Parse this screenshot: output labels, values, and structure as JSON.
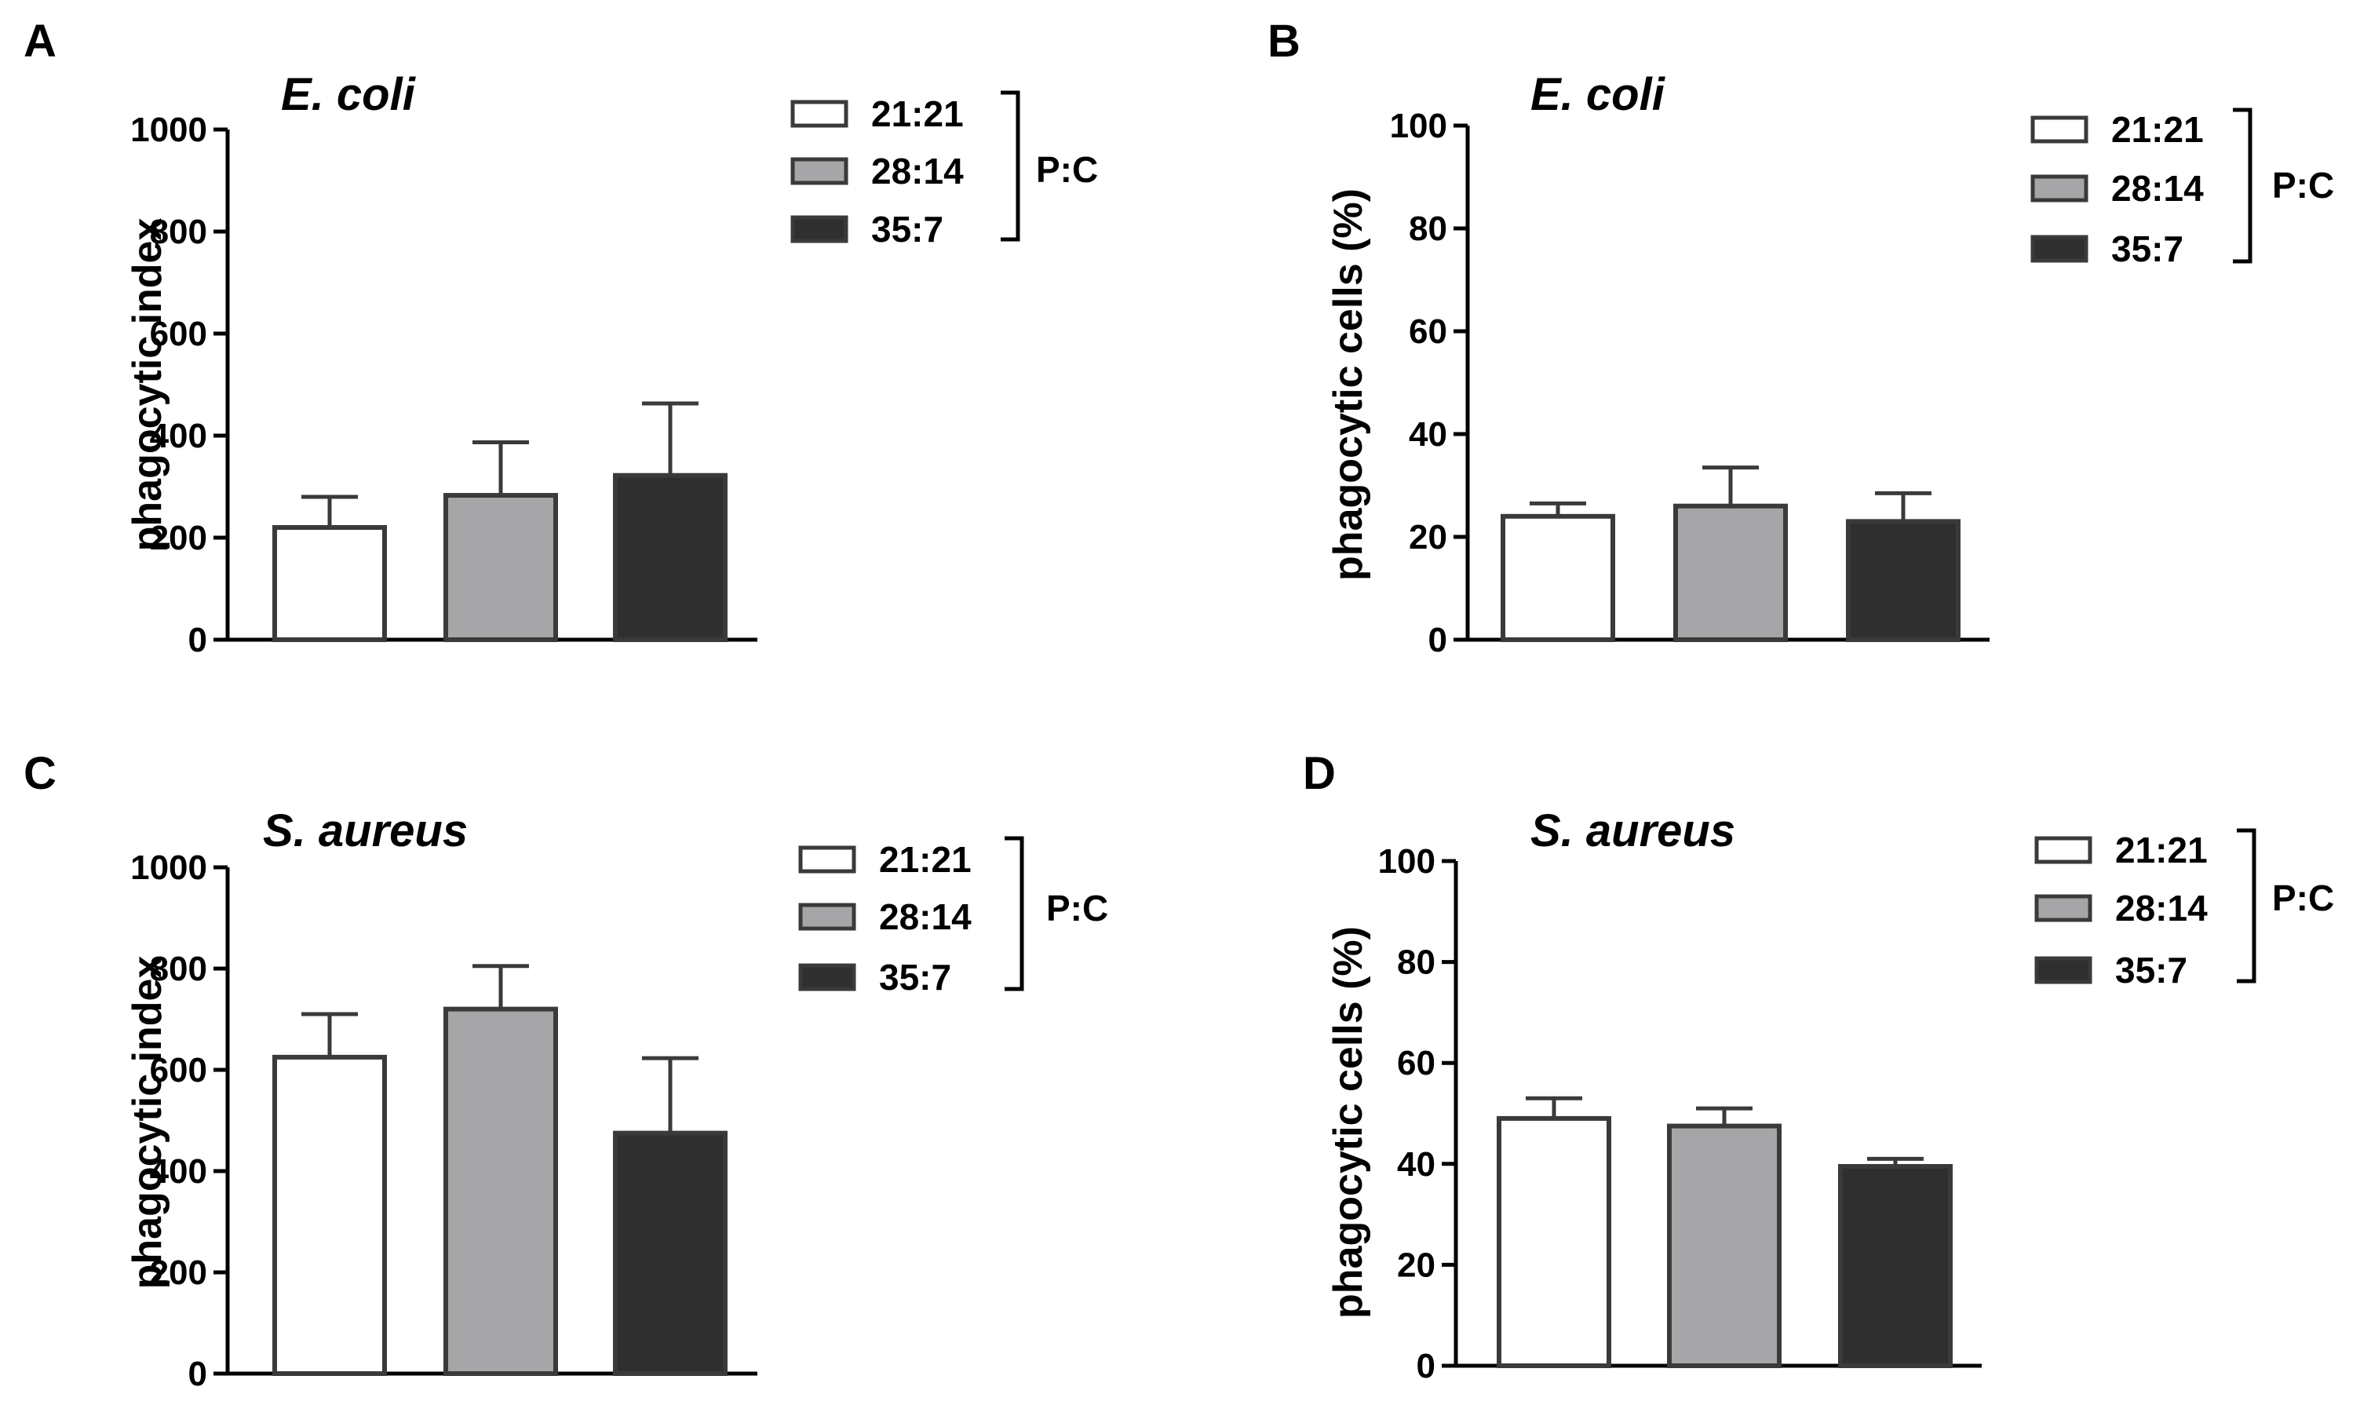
{
  "legend_group_label": "P:C",
  "legend": [
    {
      "label": "21:21",
      "color": "#ffffff"
    },
    {
      "label": "28:14",
      "color": "#a6a6a8"
    },
    {
      "label": "35:7",
      "color": "#2f2f2f"
    }
  ],
  "chart_data": [
    {
      "panel": "A",
      "type": "bar",
      "title": "E. coli",
      "ylabel": "phagocytic index",
      "xlabel": "",
      "ylim": [
        0,
        1000
      ],
      "yticks": [
        0,
        200,
        400,
        600,
        800,
        1000
      ],
      "categories": [
        "21:21",
        "28:14",
        "35:7"
      ],
      "values": [
        220,
        283,
        322
      ],
      "errors": [
        60,
        104,
        141
      ],
      "colors": [
        "#ffffff",
        "#a6a6a8",
        "#2f2f2f"
      ]
    },
    {
      "panel": "B",
      "type": "bar",
      "title": "E. coli",
      "ylabel": "phagocytic cells (%)",
      "xlabel": "",
      "ylim": [
        0,
        100
      ],
      "yticks": [
        0,
        20,
        40,
        60,
        80,
        100
      ],
      "categories": [
        "21:21",
        "28:14",
        "35:7"
      ],
      "values": [
        24,
        26,
        23
      ],
      "errors": [
        2.5,
        7.5,
        5.5
      ],
      "colors": [
        "#ffffff",
        "#a6a6a8",
        "#2f2f2f"
      ]
    },
    {
      "panel": "C",
      "type": "bar",
      "title": "S. aureus",
      "ylabel": "phagocytic index",
      "xlabel": "",
      "ylim": [
        0,
        1000
      ],
      "yticks": [
        0,
        200,
        400,
        600,
        800,
        1000
      ],
      "categories": [
        "21:21",
        "28:14",
        "35:7"
      ],
      "values": [
        625,
        720,
        475
      ],
      "errors": [
        85,
        85,
        148
      ],
      "colors": [
        "#ffffff",
        "#a6a6a8",
        "#2f2f2f"
      ]
    },
    {
      "panel": "D",
      "type": "bar",
      "title": "S. aureus",
      "ylabel": "phagocytic cells (%)",
      "xlabel": "",
      "ylim": [
        0,
        100
      ],
      "yticks": [
        0,
        20,
        40,
        60,
        80,
        100
      ],
      "categories": [
        "21:21",
        "28:14",
        "35:7"
      ],
      "values": [
        49,
        47.5,
        39.5
      ],
      "errors": [
        4,
        3.5,
        1.5
      ],
      "colors": [
        "#ffffff",
        "#a6a6a8",
        "#2f2f2f"
      ]
    }
  ]
}
